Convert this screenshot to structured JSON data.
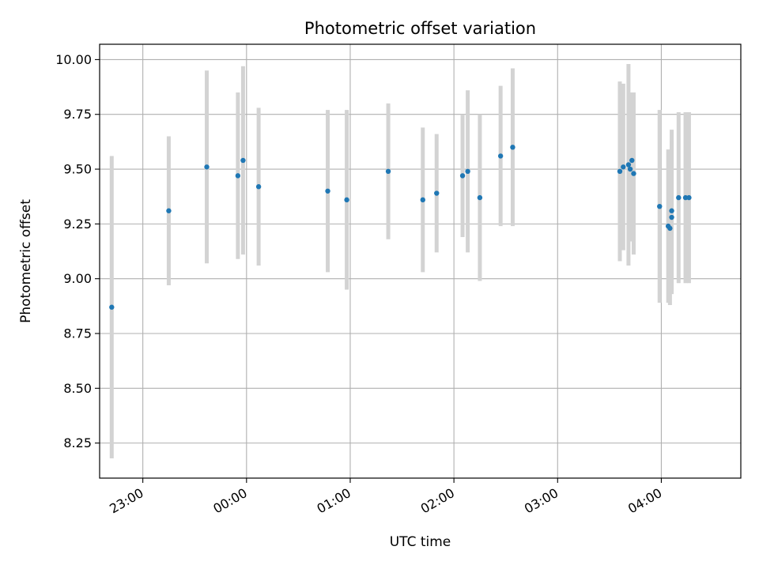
{
  "chart_data": {
    "type": "scatter",
    "title": "Photometric offset variation",
    "xlabel": "UTC time",
    "ylabel": "Photometric offset",
    "xlim": [
      "22:35",
      "04:46"
    ],
    "ylim": [
      8.09,
      10.07
    ],
    "grid": true,
    "x_ticks": [
      "23:00",
      "00:00",
      "01:00",
      "02:00",
      "03:00",
      "04:00"
    ],
    "y_ticks": [
      "8.25",
      "8.50",
      "8.75",
      "9.00",
      "9.25",
      "9.50",
      "9.75",
      "10.00"
    ],
    "colors": {
      "point": "#1f77b4",
      "errorbar": "#d3d3d3",
      "grid": "#b0b0b0"
    },
    "points": [
      {
        "x": "22:42",
        "y": 8.87,
        "err": 0.69
      },
      {
        "x": "23:15",
        "y": 9.31,
        "err": 0.34
      },
      {
        "x": "23:37",
        "y": 9.51,
        "err": 0.44
      },
      {
        "x": "23:55",
        "y": 9.47,
        "err": 0.38
      },
      {
        "x": "23:58",
        "y": 9.54,
        "err": 0.43
      },
      {
        "x": "00:07",
        "y": 9.42,
        "err": 0.36
      },
      {
        "x": "00:47",
        "y": 9.4,
        "err": 0.37
      },
      {
        "x": "00:58",
        "y": 9.36,
        "err": 0.41
      },
      {
        "x": "01:22",
        "y": 9.49,
        "err": 0.31
      },
      {
        "x": "01:42",
        "y": 9.36,
        "err": 0.33
      },
      {
        "x": "01:50",
        "y": 9.39,
        "err": 0.27
      },
      {
        "x": "02:05",
        "y": 9.47,
        "err": 0.28
      },
      {
        "x": "02:08",
        "y": 9.49,
        "err": 0.37
      },
      {
        "x": "02:15",
        "y": 9.37,
        "err": 0.38
      },
      {
        "x": "02:27",
        "y": 9.56,
        "err": 0.32
      },
      {
        "x": "02:34",
        "y": 9.6,
        "err": 0.36
      },
      {
        "x": "03:36",
        "y": 9.49,
        "err": 0.41
      },
      {
        "x": "03:38",
        "y": 9.51,
        "err": 0.38
      },
      {
        "x": "03:41",
        "y": 9.52,
        "err": 0.46
      },
      {
        "x": "03:42",
        "y": 9.5,
        "err": 0.33
      },
      {
        "x": "03:43",
        "y": 9.54,
        "err": 0.31
      },
      {
        "x": "03:44",
        "y": 9.48,
        "err": 0.37
      },
      {
        "x": "03:59",
        "y": 9.33,
        "err": 0.44
      },
      {
        "x": "04:04",
        "y": 9.24,
        "err": 0.35
      },
      {
        "x": "04:05",
        "y": 9.23,
        "err": 0.35
      },
      {
        "x": "04:06",
        "y": 9.28,
        "err": 0.35
      },
      {
        "x": "04:06",
        "y": 9.31,
        "err": 0.37
      },
      {
        "x": "04:10",
        "y": 9.37,
        "err": 0.39
      },
      {
        "x": "04:14",
        "y": 9.37,
        "err": 0.39
      },
      {
        "x": "04:16",
        "y": 9.37,
        "err": 0.39
      }
    ]
  }
}
